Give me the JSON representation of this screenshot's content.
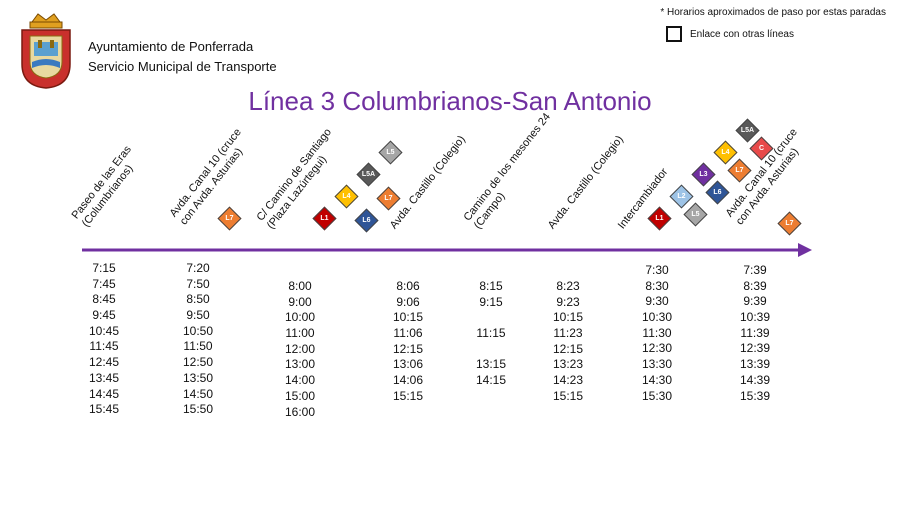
{
  "header": {
    "org_line1": "Ayuntamiento de Ponferrada",
    "org_line2": "Servicio Municipal de Transporte",
    "note": "* Horarios aproximados de paso por estas paradas",
    "legend_label": "Enlace con otras líneas",
    "title": "Línea 3 Columbrianos-San Antonio",
    "colors": {
      "title": "#7030a0",
      "route": "#7030a0"
    }
  },
  "stops": [
    {
      "lines": [
        "Paseo de las Eras",
        "(Columbrianos)"
      ]
    },
    {
      "lines": [
        "Avda. Canal 10 (cruce",
        "con Avda. Asturias)"
      ]
    },
    {
      "lines": [
        "C/ Camino de Santiago",
        "(Plaza Lazúrtegui)"
      ]
    },
    {
      "lines": [
        "Avda. Castillo (Colegio)"
      ]
    },
    {
      "lines": [
        "Camino de los mesones 24",
        "(Campo)"
      ]
    },
    {
      "lines": [
        "Avda. Castillo (Colegio)"
      ]
    },
    {
      "lines": [
        "Intercambiador"
      ]
    },
    {
      "lines": [
        "Avda. Canal 10  (cruce",
        "con Avda. Asturias)"
      ]
    }
  ],
  "badges": [
    {
      "label": "L7",
      "color": "#ed7d31"
    },
    {
      "label": "L1",
      "color": "#c00000"
    },
    {
      "label": "L4",
      "color": "#ffc000"
    },
    {
      "label": "L5A",
      "color": "#595959"
    },
    {
      "label": "L5",
      "color": "#a6a6a6"
    },
    {
      "label": "L6",
      "color": "#2f5597"
    },
    {
      "label": "L7",
      "color": "#ed7d31"
    },
    {
      "label": "L1",
      "color": "#c00000"
    },
    {
      "label": "L2",
      "color": "#9dc3e6"
    },
    {
      "label": "L3",
      "color": "#7030a0"
    },
    {
      "label": "L4",
      "color": "#ffc000"
    },
    {
      "label": "L5A",
      "color": "#595959"
    },
    {
      "label": "L5",
      "color": "#a6a6a6"
    },
    {
      "label": "L6",
      "color": "#2f5597"
    },
    {
      "label": "L7",
      "color": "#ed7d31"
    },
    {
      "label": "C",
      "color": "#e84a4a"
    },
    {
      "label": "L7",
      "color": "#ed7d31"
    }
  ],
  "schedule": [
    [
      "7:15",
      "7:45",
      "8:45",
      "9:45",
      "10:45",
      "11:45",
      "12:45",
      "13:45",
      "14:45",
      "15:45"
    ],
    [
      "7:20",
      "7:50",
      "8:50",
      "9:50",
      "10:50",
      "11:50",
      "12:50",
      "13:50",
      "14:50",
      "15:50"
    ],
    [
      "",
      "8:00",
      "9:00",
      "10:00",
      "11:00",
      "12:00",
      "13:00",
      "14:00",
      "15:00",
      "16:00"
    ],
    [
      "",
      "8:06",
      "9:06",
      "10:15",
      "11:06",
      "12:15",
      "13:06",
      "14:06",
      "15:15",
      ""
    ],
    [
      "",
      "8:15",
      "9:15",
      "",
      "11:15",
      "",
      "13:15",
      "14:15",
      "",
      ""
    ],
    [
      "",
      "8:23",
      "9:23",
      "10:15",
      "11:23",
      "12:15",
      "13:23",
      "14:23",
      "15:15",
      ""
    ],
    [
      "7:30",
      "8:30",
      "9:30",
      "10:30",
      "11:30",
      "12:30",
      "13:30",
      "14:30",
      "15:30",
      ""
    ],
    [
      "7:39",
      "8:39",
      "9:39",
      "10:39",
      "11:39",
      "12:39",
      "13:39",
      "14:39",
      "15:39",
      ""
    ]
  ]
}
